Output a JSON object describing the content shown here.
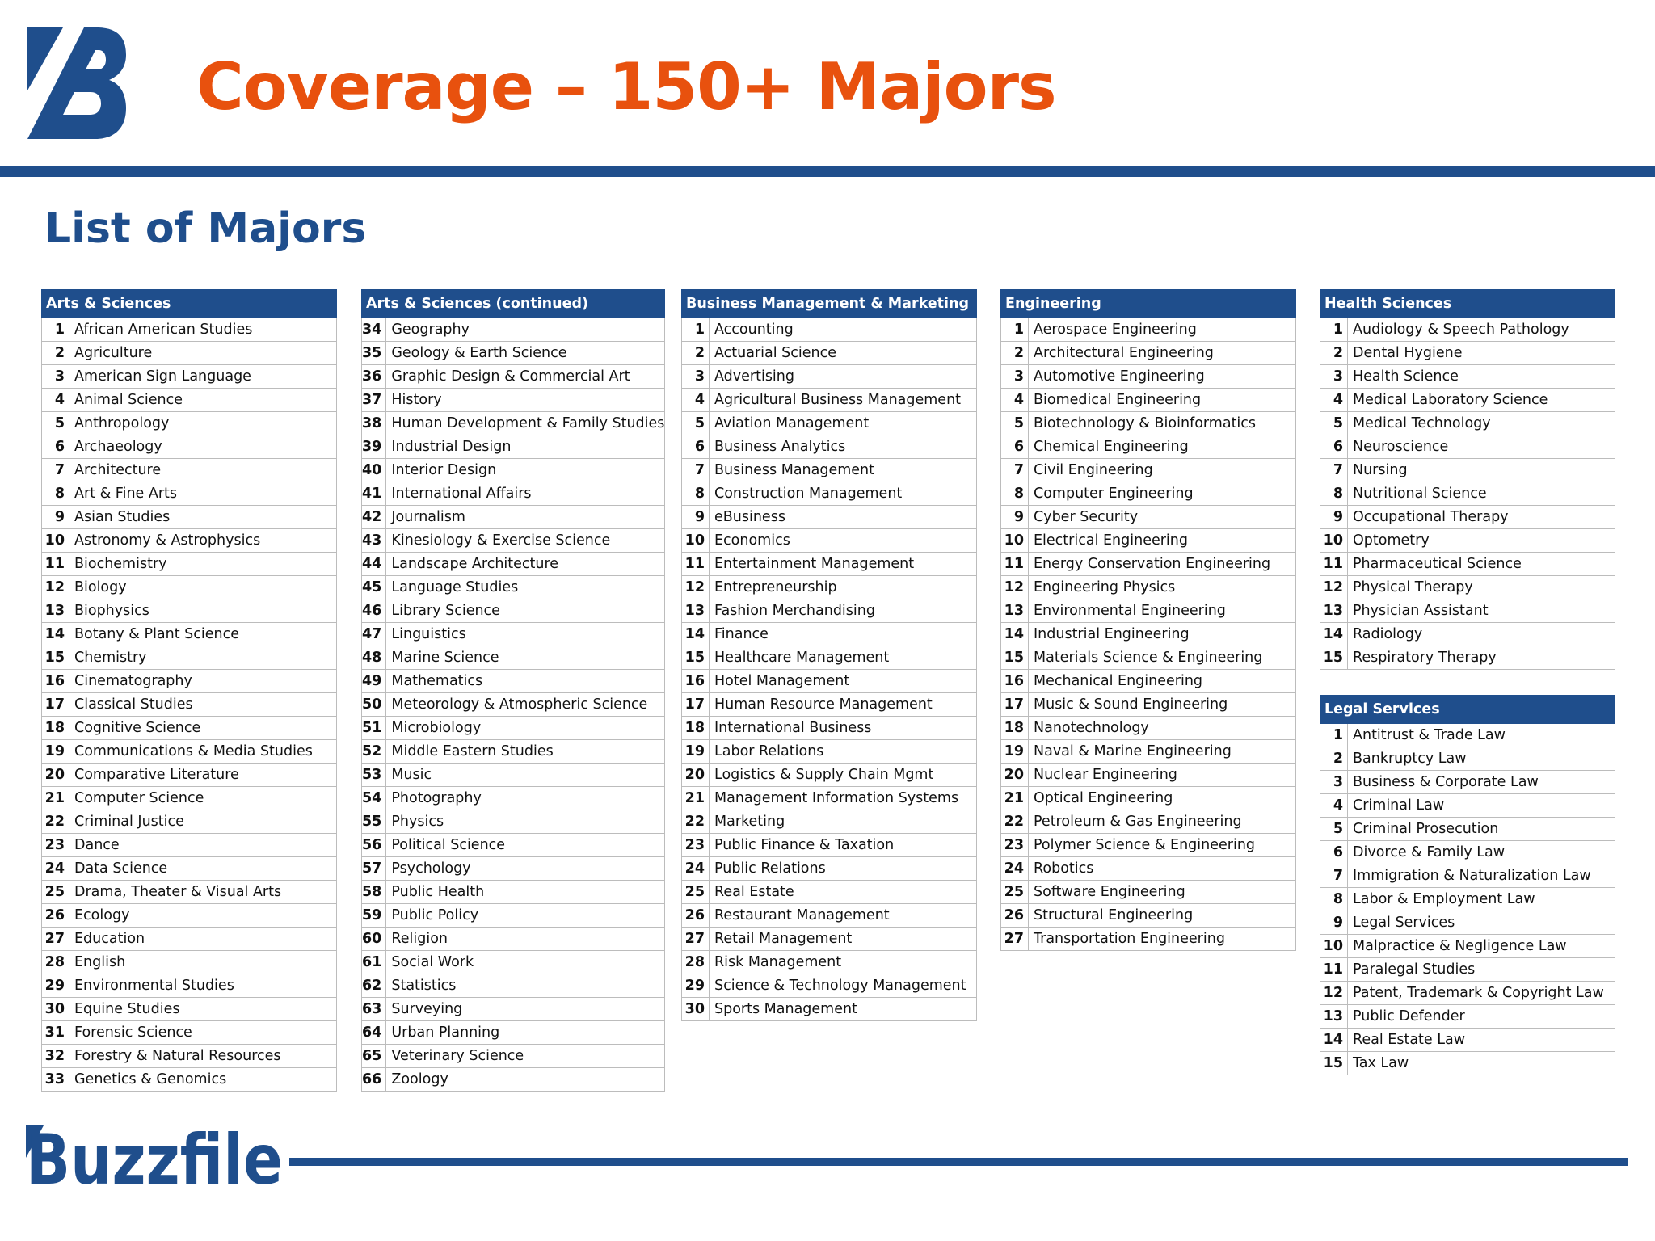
{
  "title": "Coverage – 150+ Majors",
  "subtitle": "List of Majors",
  "brand": {
    "name": "Buzzfile",
    "logo_icon": "buzzfile-b-logo",
    "primary_color": "#1f4e8c",
    "accent_color": "#e8510e"
  },
  "tables": [
    {
      "header": "Arts & Sciences",
      "rows": [
        {
          "num": "1",
          "name": "African American Studies"
        },
        {
          "num": "2",
          "name": "Agriculture"
        },
        {
          "num": "3",
          "name": "American Sign Language"
        },
        {
          "num": "4",
          "name": "Animal Science"
        },
        {
          "num": "5",
          "name": "Anthropology"
        },
        {
          "num": "6",
          "name": "Archaeology"
        },
        {
          "num": "7",
          "name": "Architecture"
        },
        {
          "num": "8",
          "name": "Art & Fine Arts"
        },
        {
          "num": "9",
          "name": "Asian Studies"
        },
        {
          "num": "10",
          "name": "Astronomy & Astrophysics"
        },
        {
          "num": "11",
          "name": "Biochemistry"
        },
        {
          "num": "12",
          "name": "Biology"
        },
        {
          "num": "13",
          "name": "Biophysics"
        },
        {
          "num": "14",
          "name": "Botany & Plant Science"
        },
        {
          "num": "15",
          "name": "Chemistry"
        },
        {
          "num": "16",
          "name": "Cinematography"
        },
        {
          "num": "17",
          "name": "Classical Studies"
        },
        {
          "num": "18",
          "name": "Cognitive Science"
        },
        {
          "num": "19",
          "name": "Communications & Media Studies"
        },
        {
          "num": "20",
          "name": "Comparative Literature"
        },
        {
          "num": "21",
          "name": "Computer Science"
        },
        {
          "num": "22",
          "name": "Criminal Justice"
        },
        {
          "num": "23",
          "name": "Dance"
        },
        {
          "num": "24",
          "name": "Data Science"
        },
        {
          "num": "25",
          "name": "Drama, Theater & Visual Arts"
        },
        {
          "num": "26",
          "name": "Ecology"
        },
        {
          "num": "27",
          "name": "Education"
        },
        {
          "num": "28",
          "name": "English"
        },
        {
          "num": "29",
          "name": "Environmental Studies"
        },
        {
          "num": "30",
          "name": "Equine Studies"
        },
        {
          "num": "31",
          "name": "Forensic Science"
        },
        {
          "num": "32",
          "name": "Forestry & Natural Resources"
        },
        {
          "num": "33",
          "name": "Genetics & Genomics"
        }
      ]
    },
    {
      "header": "Arts & Sciences (continued)",
      "rows": [
        {
          "num": "34",
          "name": "Geography"
        },
        {
          "num": "35",
          "name": "Geology & Earth Science"
        },
        {
          "num": "36",
          "name": "Graphic Design & Commercial Art"
        },
        {
          "num": "37",
          "name": "History"
        },
        {
          "num": "38",
          "name": "Human Development & Family Studies"
        },
        {
          "num": "39",
          "name": "Industrial Design"
        },
        {
          "num": "40",
          "name": "Interior Design"
        },
        {
          "num": "41",
          "name": "International Affairs"
        },
        {
          "num": "42",
          "name": "Journalism"
        },
        {
          "num": "43",
          "name": "Kinesiology & Exercise Science"
        },
        {
          "num": "44",
          "name": "Landscape Architecture"
        },
        {
          "num": "45",
          "name": "Language Studies"
        },
        {
          "num": "46",
          "name": "Library Science"
        },
        {
          "num": "47",
          "name": "Linguistics"
        },
        {
          "num": "48",
          "name": "Marine Science"
        },
        {
          "num": "49",
          "name": "Mathematics"
        },
        {
          "num": "50",
          "name": "Meteorology & Atmospheric Science"
        },
        {
          "num": "51",
          "name": "Microbiology"
        },
        {
          "num": "52",
          "name": "Middle Eastern Studies"
        },
        {
          "num": "53",
          "name": "Music"
        },
        {
          "num": "54",
          "name": "Photography"
        },
        {
          "num": "55",
          "name": "Physics"
        },
        {
          "num": "56",
          "name": "Political Science"
        },
        {
          "num": "57",
          "name": "Psychology"
        },
        {
          "num": "58",
          "name": "Public Health"
        },
        {
          "num": "59",
          "name": "Public Policy"
        },
        {
          "num": "60",
          "name": "Religion"
        },
        {
          "num": "61",
          "name": "Social Work"
        },
        {
          "num": "62",
          "name": "Statistics"
        },
        {
          "num": "63",
          "name": "Surveying"
        },
        {
          "num": "64",
          "name": "Urban Planning"
        },
        {
          "num": "65",
          "name": "Veterinary Science"
        },
        {
          "num": "66",
          "name": "Zoology"
        }
      ]
    },
    {
      "header": "Business Management & Marketing",
      "rows": [
        {
          "num": "1",
          "name": "Accounting"
        },
        {
          "num": "2",
          "name": "Actuarial Science"
        },
        {
          "num": "3",
          "name": "Advertising"
        },
        {
          "num": "4",
          "name": "Agricultural Business Management"
        },
        {
          "num": "5",
          "name": "Aviation Management"
        },
        {
          "num": "6",
          "name": "Business Analytics"
        },
        {
          "num": "7",
          "name": "Business Management"
        },
        {
          "num": "8",
          "name": "Construction Management"
        },
        {
          "num": "9",
          "name": "eBusiness"
        },
        {
          "num": "10",
          "name": "Economics"
        },
        {
          "num": "11",
          "name": "Entertainment Management"
        },
        {
          "num": "12",
          "name": "Entrepreneurship"
        },
        {
          "num": "13",
          "name": "Fashion Merchandising"
        },
        {
          "num": "14",
          "name": "Finance"
        },
        {
          "num": "15",
          "name": "Healthcare Management"
        },
        {
          "num": "16",
          "name": "Hotel Management"
        },
        {
          "num": "17",
          "name": "Human Resource Management"
        },
        {
          "num": "18",
          "name": "International Business"
        },
        {
          "num": "19",
          "name": "Labor Relations"
        },
        {
          "num": "20",
          "name": "Logistics & Supply Chain Mgmt"
        },
        {
          "num": "21",
          "name": "Management Information Systems"
        },
        {
          "num": "22",
          "name": "Marketing"
        },
        {
          "num": "23",
          "name": "Public Finance & Taxation"
        },
        {
          "num": "24",
          "name": "Public Relations"
        },
        {
          "num": "25",
          "name": "Real Estate"
        },
        {
          "num": "26",
          "name": "Restaurant Management"
        },
        {
          "num": "27",
          "name": "Retail Management"
        },
        {
          "num": "28",
          "name": "Risk Management"
        },
        {
          "num": "29",
          "name": "Science & Technology Management"
        },
        {
          "num": "30",
          "name": "Sports Management"
        }
      ]
    },
    {
      "header": "Engineering",
      "rows": [
        {
          "num": "1",
          "name": "Aerospace Engineering"
        },
        {
          "num": "2",
          "name": "Architectural Engineering"
        },
        {
          "num": "3",
          "name": "Automotive Engineering"
        },
        {
          "num": "4",
          "name": "Biomedical Engineering"
        },
        {
          "num": "5",
          "name": "Biotechnology & Bioinformatics"
        },
        {
          "num": "6",
          "name": "Chemical Engineering"
        },
        {
          "num": "7",
          "name": "Civil Engineering"
        },
        {
          "num": "8",
          "name": "Computer Engineering"
        },
        {
          "num": "9",
          "name": "Cyber Security"
        },
        {
          "num": "10",
          "name": "Electrical Engineering"
        },
        {
          "num": "11",
          "name": "Energy Conservation Engineering"
        },
        {
          "num": "12",
          "name": "Engineering Physics"
        },
        {
          "num": "13",
          "name": "Environmental Engineering"
        },
        {
          "num": "14",
          "name": "Industrial Engineering"
        },
        {
          "num": "15",
          "name": "Materials Science & Engineering"
        },
        {
          "num": "16",
          "name": "Mechanical Engineering"
        },
        {
          "num": "17",
          "name": "Music & Sound Engineering"
        },
        {
          "num": "18",
          "name": "Nanotechnology"
        },
        {
          "num": "19",
          "name": "Naval & Marine Engineering"
        },
        {
          "num": "20",
          "name": "Nuclear Engineering"
        },
        {
          "num": "21",
          "name": "Optical Engineering"
        },
        {
          "num": "22",
          "name": "Petroleum & Gas Engineering"
        },
        {
          "num": "23",
          "name": "Polymer Science & Engineering"
        },
        {
          "num": "24",
          "name": "Robotics"
        },
        {
          "num": "25",
          "name": "Software Engineering"
        },
        {
          "num": "26",
          "name": "Structural Engineering"
        },
        {
          "num": "27",
          "name": "Transportation Engineering"
        }
      ]
    },
    {
      "header": "Health Sciences",
      "rows": [
        {
          "num": "1",
          "name": "Audiology & Speech Pathology"
        },
        {
          "num": "2",
          "name": "Dental Hygiene"
        },
        {
          "num": "3",
          "name": "Health Science"
        },
        {
          "num": "4",
          "name": "Medical Laboratory Science"
        },
        {
          "num": "5",
          "name": "Medical Technology"
        },
        {
          "num": "6",
          "name": "Neuroscience"
        },
        {
          "num": "7",
          "name": "Nursing"
        },
        {
          "num": "8",
          "name": "Nutritional Science"
        },
        {
          "num": "9",
          "name": "Occupational Therapy"
        },
        {
          "num": "10",
          "name": "Optometry"
        },
        {
          "num": "11",
          "name": "Pharmaceutical Science"
        },
        {
          "num": "12",
          "name": "Physical Therapy"
        },
        {
          "num": "13",
          "name": "Physician Assistant"
        },
        {
          "num": "14",
          "name": "Radiology"
        },
        {
          "num": "15",
          "name": "Respiratory Therapy"
        }
      ]
    },
    {
      "header": "Legal Services",
      "rows": [
        {
          "num": "1",
          "name": "Antitrust & Trade Law"
        },
        {
          "num": "2",
          "name": "Bankruptcy Law"
        },
        {
          "num": "3",
          "name": "Business & Corporate Law"
        },
        {
          "num": "4",
          "name": "Criminal Law"
        },
        {
          "num": "5",
          "name": "Criminal Prosecution"
        },
        {
          "num": "6",
          "name": "Divorce & Family Law"
        },
        {
          "num": "7",
          "name": "Immigration & Naturalization Law"
        },
        {
          "num": "8",
          "name": "Labor & Employment Law"
        },
        {
          "num": "9",
          "name": "Legal Services"
        },
        {
          "num": "10",
          "name": "Malpractice & Negligence Law"
        },
        {
          "num": "11",
          "name": "Paralegal Studies"
        },
        {
          "num": "12",
          "name": "Patent, Trademark & Copyright Law"
        },
        {
          "num": "13",
          "name": "Public Defender"
        },
        {
          "num": "14",
          "name": "Real Estate Law"
        },
        {
          "num": "15",
          "name": "Tax Law"
        }
      ]
    }
  ]
}
